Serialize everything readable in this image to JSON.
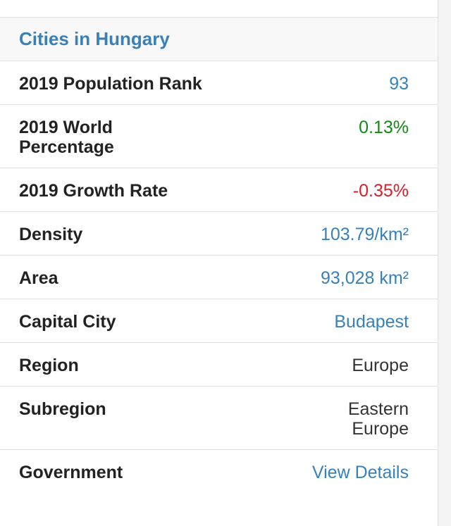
{
  "header": {
    "title": "Cities in Hungary"
  },
  "rows": [
    {
      "label": "2019 Population Rank",
      "value": "93"
    },
    {
      "label": "2019 World Percentage",
      "value": "0.13%"
    },
    {
      "label": "2019 Growth Rate",
      "value": "-0.35%"
    },
    {
      "label": "Density",
      "value": "103.79/km²"
    },
    {
      "label": "Area",
      "value": "93,028 km²"
    },
    {
      "label": "Capital City",
      "value": "Budapest"
    },
    {
      "label": "Region",
      "value": "Europe"
    },
    {
      "label": "Subregion",
      "value": "Eastern Europe"
    },
    {
      "label": "Government",
      "value": "View Details"
    }
  ],
  "colors": {
    "link_blue": "#3a80b8",
    "positive_green": "#148a14",
    "negative_red": "#d8202a"
  }
}
